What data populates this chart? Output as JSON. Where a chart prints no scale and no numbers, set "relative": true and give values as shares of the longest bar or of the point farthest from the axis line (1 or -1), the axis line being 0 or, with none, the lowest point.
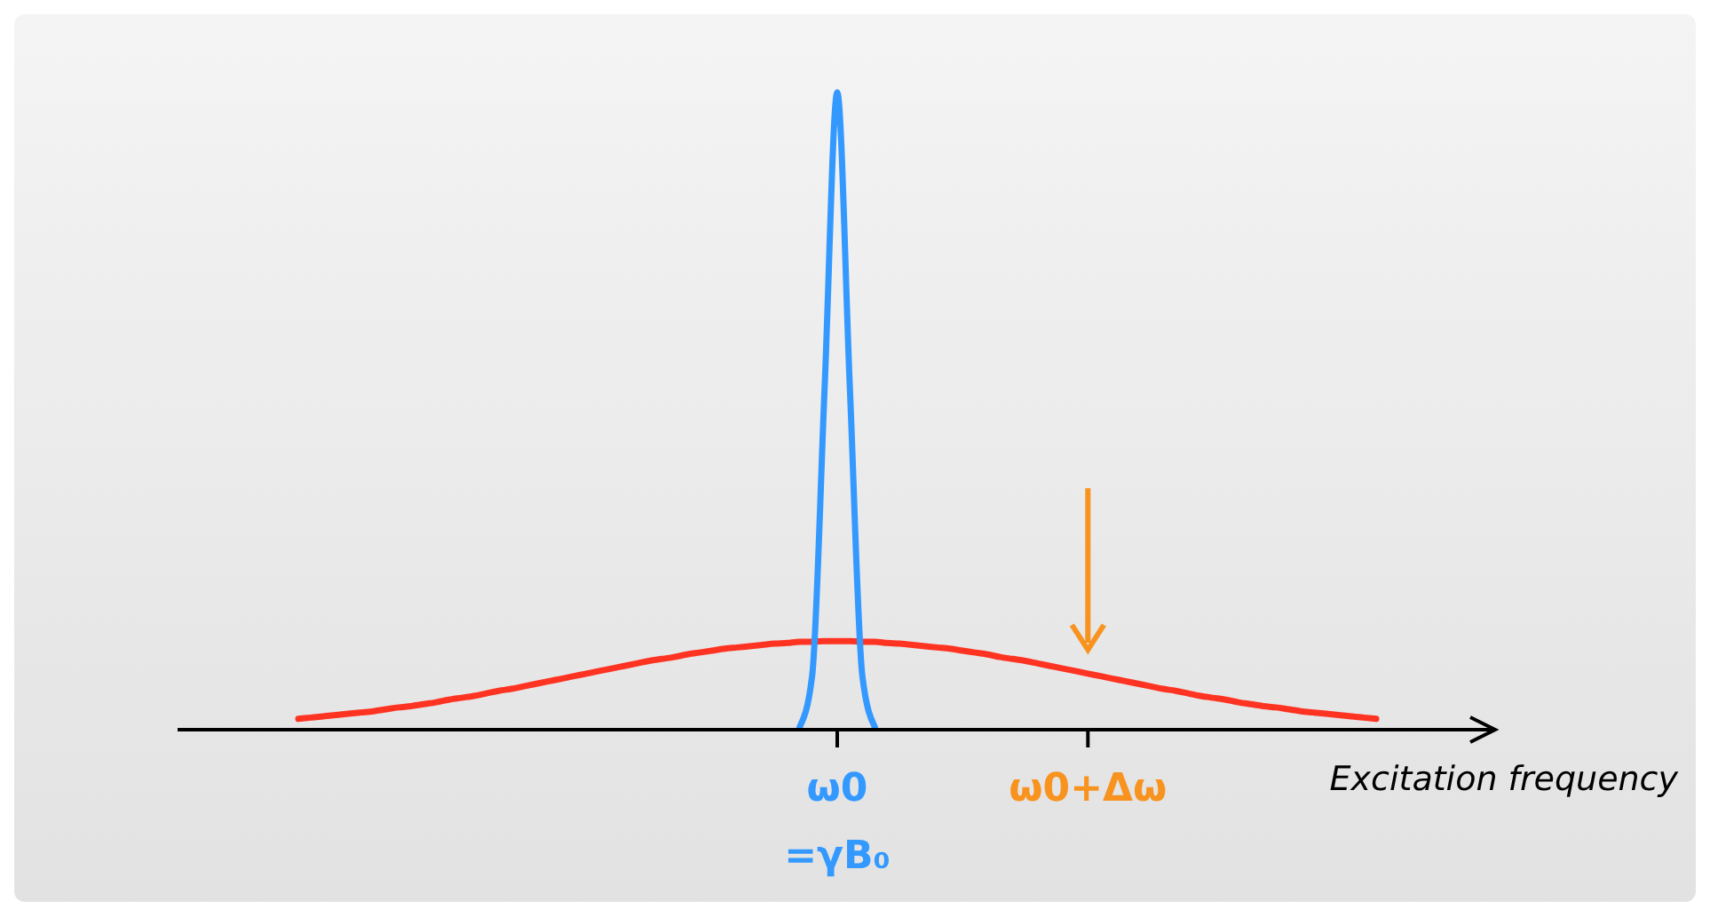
{
  "chart_data": {
    "type": "line",
    "relative": true,
    "xlabel": "Excitation frequency",
    "tick_labels": "x",
    "categories": [
      null,
      null,
      null,
      null,
      null,
      null,
      null,
      null,
      null,
      null,
      null,
      null,
      null,
      null,
      null,
      null,
      null,
      null,
      null,
      null,
      null,
      null,
      null,
      null,
      null,
      null,
      null,
      null,
      null,
      null,
      null,
      null,
      null,
      null,
      null,
      null,
      null,
      null,
      null,
      null,
      null,
      null,
      null,
      "ω0 =γB₀",
      null,
      null,
      null,
      null,
      null,
      null,
      null,
      null,
      null,
      null,
      null,
      null,
      null,
      null,
      null,
      null,
      null,
      null,
      null,
      "ω0+Δω",
      null,
      null,
      null,
      null,
      null,
      null,
      null,
      null,
      null,
      null,
      null,
      null,
      null,
      null,
      null,
      null,
      null,
      null,
      null,
      null,
      null,
      null,
      null
    ],
    "series": [
      {
        "color": "#ff3322",
        "values": [
          0.017,
          0.019,
          0.021,
          0.023,
          0.025,
          0.027,
          0.029,
          0.032,
          0.035,
          0.037,
          0.04,
          0.043,
          0.047,
          0.05,
          0.053,
          0.057,
          0.061,
          0.064,
          0.068,
          0.072,
          0.076,
          0.08,
          0.084,
          0.088,
          0.092,
          0.096,
          0.1,
          0.104,
          0.108,
          0.111,
          0.114,
          0.118,
          0.121,
          0.124,
          0.127,
          0.129,
          0.131,
          0.133,
          0.135,
          0.136,
          0.138,
          0.138,
          0.139,
          0.139,
          0.139,
          0.138,
          0.138,
          0.136,
          0.135,
          0.133,
          0.131,
          0.129,
          0.127,
          0.124,
          0.121,
          0.118,
          0.114,
          0.111,
          0.108,
          0.104,
          0.1,
          0.096,
          0.092,
          0.088,
          0.084,
          0.08,
          0.076,
          0.072,
          0.068,
          0.064,
          0.061,
          0.057,
          0.053,
          0.05,
          0.047,
          0.043,
          0.04,
          0.037,
          0.035,
          0.032,
          0.029,
          0.027,
          0.025,
          0.023,
          0.021,
          0.019,
          0.017
        ]
      },
      {
        "color": "#3399ff",
        "values": [
          null,
          null,
          null,
          null,
          null,
          null,
          null,
          null,
          null,
          null,
          null,
          null,
          null,
          null,
          null,
          null,
          null,
          null,
          null,
          null,
          null,
          null,
          null,
          null,
          null,
          null,
          null,
          null,
          null,
          null,
          null,
          null,
          null,
          null,
          null,
          null,
          null,
          null,
          null,
          null,
          0.004,
          0.085,
          0.54,
          1,
          0.54,
          0.085,
          0.004,
          null,
          null,
          null,
          null,
          null,
          null,
          null,
          null,
          null,
          null,
          null,
          null,
          null,
          null,
          null,
          null,
          null,
          null,
          null,
          null,
          null,
          null,
          null,
          null,
          null,
          null,
          null,
          null,
          null,
          null,
          null,
          null,
          null,
          null,
          null,
          null,
          null,
          null,
          null,
          null
        ]
      }
    ]
  }
}
